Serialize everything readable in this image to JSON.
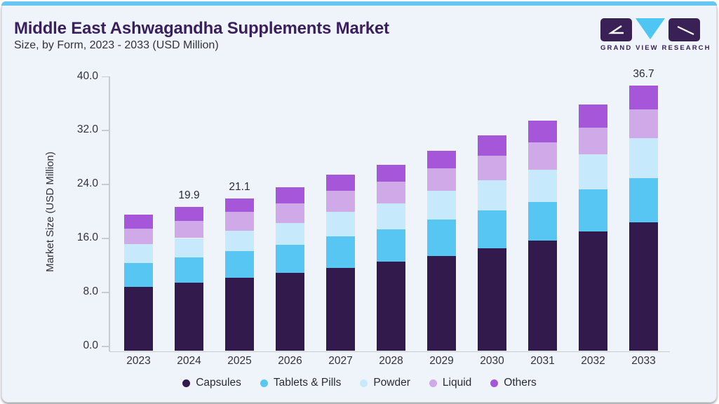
{
  "header": {
    "title": "Middle East Ashwagandha Supplements Market",
    "subtitle": "Size, by Form, 2023 - 2033 (USD Million)"
  },
  "logo": {
    "text": "GRAND VIEW RESEARCH"
  },
  "colors": {
    "accent_bar": "#67c5f1",
    "title": "#3a1f5e",
    "axis": "#c6cbd3",
    "card_background": "#eff4fa",
    "logo_purple": "#3a2155",
    "logo_blue": "#4dc6f3"
  },
  "chart_data": {
    "type": "bar",
    "stacked": true,
    "title": "Middle East Ashwagandha Supplements Market Size, by Form, 2023 - 2033 (USD Million)",
    "categories": [
      "2023",
      "2024",
      "2025",
      "2026",
      "2027",
      "2028",
      "2029",
      "2030",
      "2031",
      "2032",
      "2033"
    ],
    "series": [
      {
        "name": "Capsules",
        "color": "#321a4c",
        "values": [
          8.9,
          9.4,
          10.1,
          10.8,
          11.5,
          12.4,
          13.1,
          14.2,
          15.3,
          16.5,
          17.8
        ]
      },
      {
        "name": "Tablets & Pills",
        "color": "#58c6f2",
        "values": [
          3.3,
          3.5,
          3.7,
          3.9,
          4.3,
          4.4,
          5.1,
          5.2,
          5.3,
          5.8,
          6.1
        ]
      },
      {
        "name": "Powder",
        "color": "#c6eafb",
        "values": [
          2.6,
          2.7,
          2.8,
          3.0,
          3.4,
          3.6,
          3.9,
          4.2,
          4.4,
          4.9,
          5.5
        ]
      },
      {
        "name": "Liquid",
        "color": "#cfa9e8",
        "values": [
          2.1,
          2.4,
          2.6,
          2.7,
          2.9,
          3.0,
          3.1,
          3.4,
          3.8,
          3.7,
          4.0
        ]
      },
      {
        "name": "Others",
        "color": "#a656d8",
        "values": [
          1.9,
          1.9,
          1.9,
          2.2,
          2.3,
          2.3,
          2.5,
          2.8,
          3.0,
          3.2,
          3.3
        ]
      }
    ],
    "totals_labeled": {
      "2024": "19.9",
      "2025": "21.1",
      "2033": "36.7"
    },
    "ylabel": "Market Size (USD Million)",
    "yticks": [
      "0.0",
      "8.0",
      "16.0",
      "24.0",
      "32.0",
      "40.0"
    ],
    "ylim": [
      0,
      40
    ],
    "grid": false,
    "legend_position": "bottom"
  }
}
